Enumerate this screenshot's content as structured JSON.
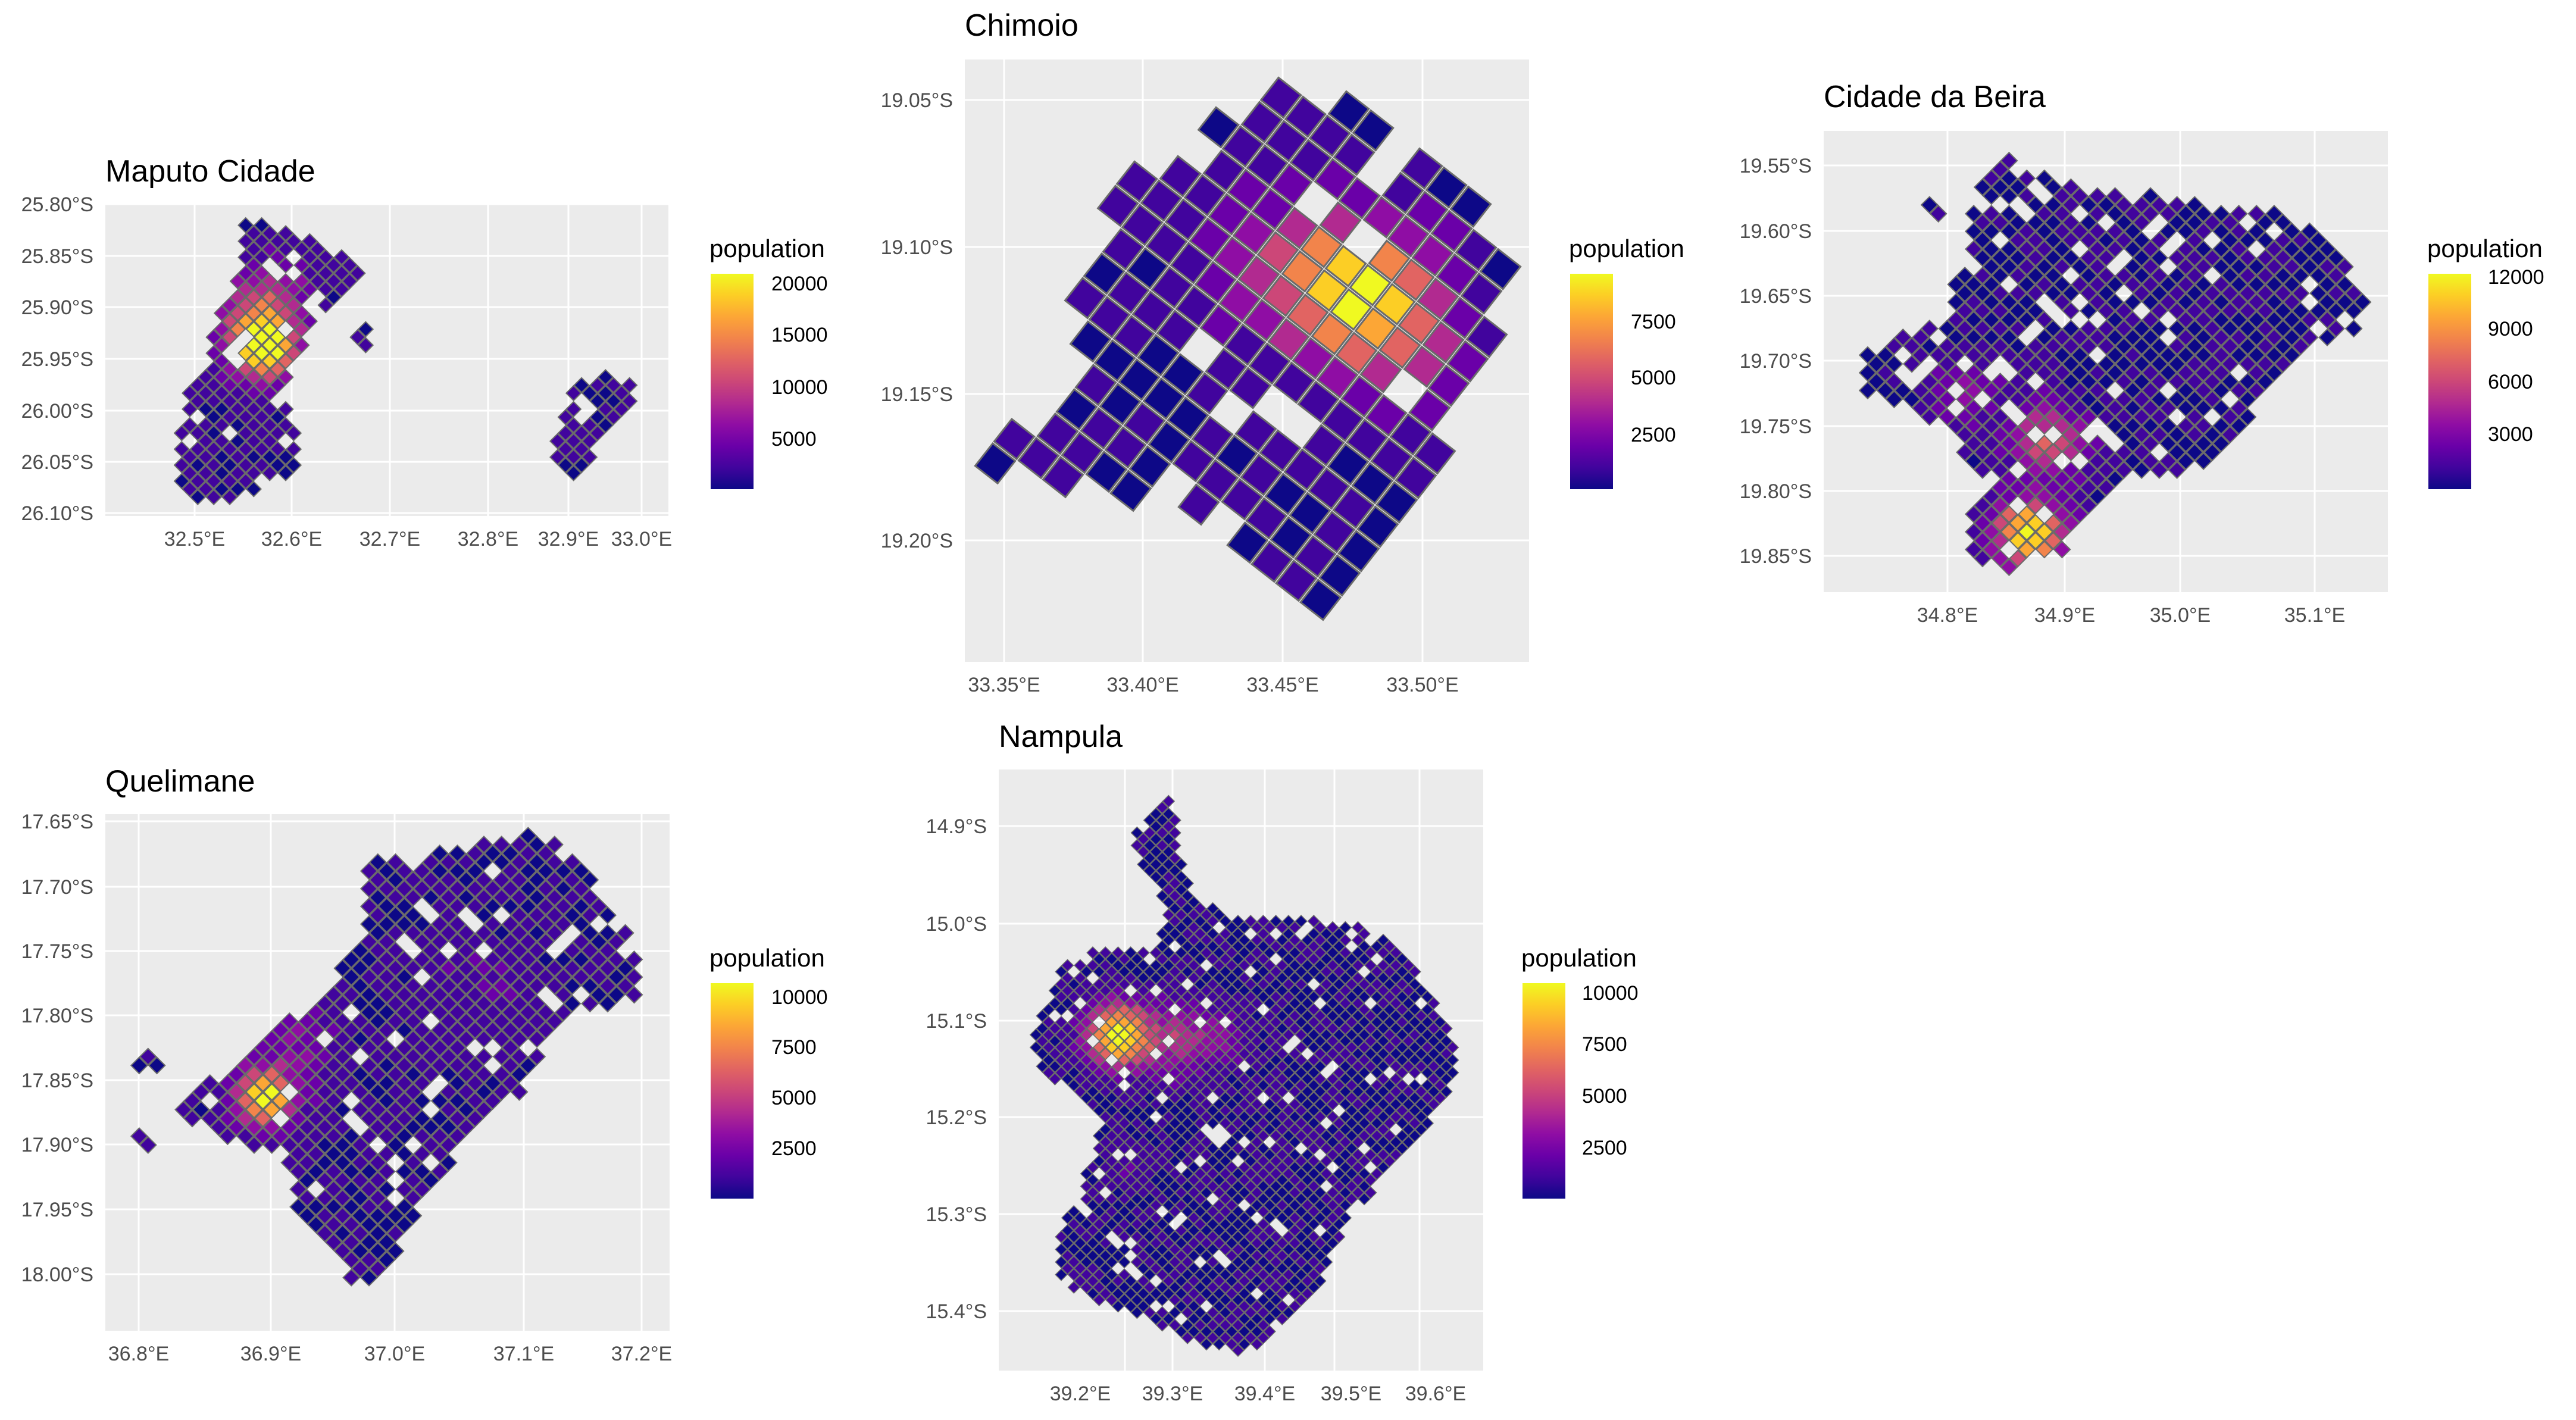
{
  "figure": {
    "colors": {
      "panel_bg": "#ebebeb",
      "grid": "#ffffff",
      "cell_stroke": "#6b6b6b",
      "palette": [
        "#0d0887",
        "#41049d",
        "#6a00a8",
        "#8f0da4",
        "#b12a90",
        "#cc4778",
        "#e16462",
        "#f2844b",
        "#fca636",
        "#fcce25",
        "#f0f921"
      ]
    }
  },
  "panels": [
    {
      "id": "maputo",
      "title": "Maputo Cidade",
      "legend": {
        "title": "population",
        "ticks": [
          "20000",
          "15000",
          "10000",
          "5000"
        ]
      },
      "x_ticks": [
        "32.5°E",
        "32.6°E",
        "32.7°E",
        "32.8°E",
        "32.9°E",
        "33.0°E"
      ],
      "y_ticks": [
        "25.80°S",
        "25.85°S",
        "25.90°S",
        "25.95°S",
        "26.00°S",
        "26.05°S",
        "26.10°S"
      ]
    },
    {
      "id": "chimoio",
      "title": "Chimoio",
      "legend": {
        "title": "population",
        "ticks": [
          "7500",
          "5000",
          "2500"
        ]
      },
      "x_ticks": [
        "33.35°E",
        "33.40°E",
        "33.45°E",
        "33.50°E"
      ],
      "y_ticks": [
        "19.05°S",
        "19.10°S",
        "19.15°S",
        "19.20°S"
      ]
    },
    {
      "id": "beira",
      "title": "Cidade da Beira",
      "legend": {
        "title": "population",
        "ticks": [
          "12000",
          "9000",
          "6000",
          "3000"
        ]
      },
      "x_ticks": [
        "34.8°E",
        "34.9°E",
        "35.0°E",
        "35.1°E"
      ],
      "y_ticks": [
        "19.55°S",
        "19.60°S",
        "19.65°S",
        "19.70°S",
        "19.75°S",
        "19.80°S",
        "19.85°S"
      ]
    },
    {
      "id": "quelimane",
      "title": "Quelimane",
      "legend": {
        "title": "population",
        "ticks": [
          "10000",
          "7500",
          "5000",
          "2500"
        ]
      },
      "x_ticks": [
        "36.8°E",
        "36.9°E",
        "37.0°E",
        "37.1°E",
        "37.2°E"
      ],
      "y_ticks": [
        "17.65°S",
        "17.70°S",
        "17.75°S",
        "17.80°S",
        "17.85°S",
        "17.90°S",
        "17.95°S",
        "18.00°S"
      ]
    },
    {
      "id": "nampula",
      "title": "Nampula",
      "legend": {
        "title": "population",
        "ticks": [
          "10000",
          "7500",
          "5000",
          "2500"
        ]
      },
      "x_ticks": [
        "39.2°E",
        "39.3°E",
        "39.4°E",
        "39.5°E",
        "39.6°E"
      ],
      "y_ticks": [
        "14.9°S",
        "15.0°S",
        "15.1°S",
        "15.2°S",
        "15.3°S",
        "15.4°S"
      ]
    }
  ]
}
